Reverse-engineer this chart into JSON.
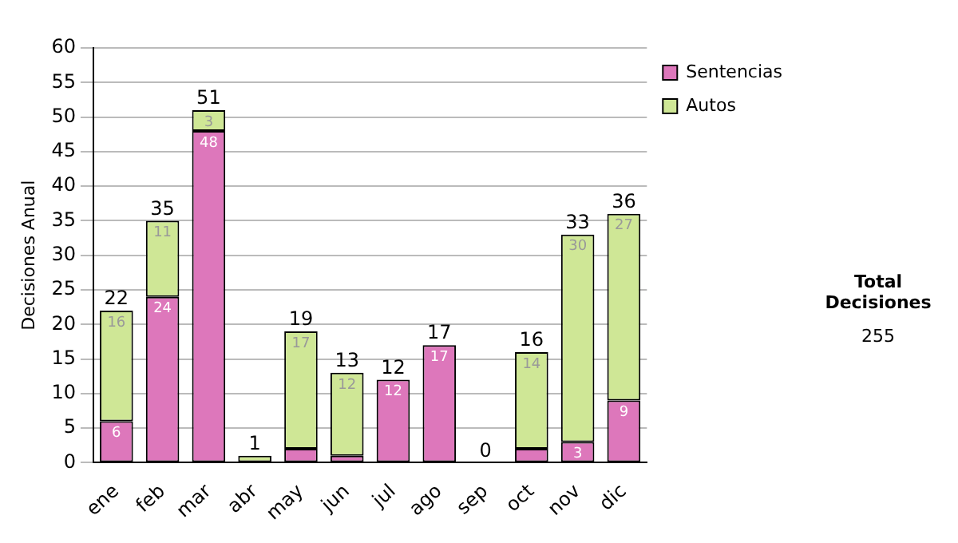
{
  "chart_data": {
    "type": "bar",
    "stacked": true,
    "ylabel": "Decisiones Anual",
    "categories": [
      "ene",
      "feb",
      "mar",
      "abr",
      "may",
      "jun",
      "jul",
      "ago",
      "sep",
      "oct",
      "nov",
      "dic"
    ],
    "series": [
      {
        "name": "Sentencias",
        "color": "#dd77bb",
        "values": [
          6,
          24,
          48,
          0,
          2,
          1,
          12,
          17,
          0,
          2,
          3,
          9
        ],
        "value_labels": [
          "6",
          "24",
          "48",
          null,
          null,
          null,
          "12",
          "17",
          null,
          null,
          "3",
          "9"
        ]
      },
      {
        "name": "Autos",
        "color": "#cfe796",
        "values": [
          16,
          11,
          3,
          1,
          17,
          12,
          0,
          0,
          0,
          14,
          30,
          27
        ],
        "value_labels": [
          "16",
          "11",
          "3",
          null,
          "17",
          "12",
          null,
          null,
          null,
          "14",
          "30",
          "27"
        ]
      }
    ],
    "totals": [
      "22",
      "35",
      "51",
      "1",
      "19",
      "13",
      "12",
      "17",
      "0",
      "16",
      "33",
      "36"
    ],
    "ylim": [
      0,
      60
    ],
    "yticks": [
      0,
      5,
      10,
      15,
      20,
      25,
      30,
      35,
      40,
      45,
      50,
      55,
      60
    ],
    "grid": "y",
    "legend": "right",
    "annotations": [
      "Total Decisiones",
      "255"
    ]
  }
}
